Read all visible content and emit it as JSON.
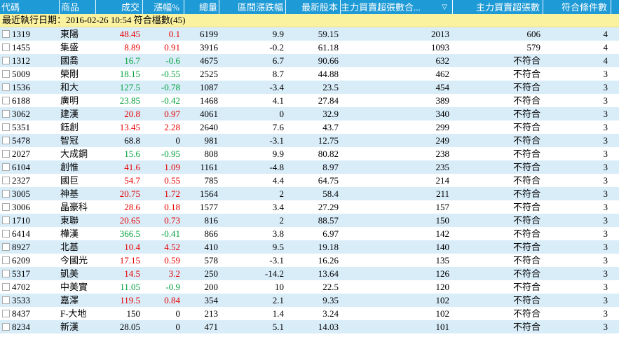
{
  "header": {
    "columns": [
      {
        "id": "code",
        "label": "代碼"
      },
      {
        "id": "name",
        "label": "商品"
      },
      {
        "id": "price",
        "label": "成交"
      },
      {
        "id": "change",
        "label": "漲幅%"
      },
      {
        "id": "volume",
        "label": "總量"
      },
      {
        "id": "range",
        "label": "區間漲跌幅"
      },
      {
        "id": "capital",
        "label": "最新股本"
      },
      {
        "id": "maintotal",
        "label": "主力買賣超張數合...",
        "sort_indicator": "▽"
      },
      {
        "id": "mainnet",
        "label": "主力買賣超張數"
      },
      {
        "id": "match",
        "label": "符合條件數"
      }
    ]
  },
  "info_bar": {
    "text": "最近執行日期：2016-02-26 10:54 符合檔數(45)"
  },
  "colors": {
    "up": "#e60000",
    "down": "#00a03c",
    "flat": "#000000",
    "header_bg": "#1e9ad6",
    "header_text": "#ffffff",
    "info_bg": "#fbf2a0",
    "row_alt_bg": "#d9edf9",
    "row_bg": "#ffffff"
  },
  "rows": [
    {
      "code": "1319",
      "name": "東陽",
      "price": "48.45",
      "change": "0.1",
      "volume": "6199",
      "range": "9.9",
      "capital": "59.15",
      "maintotal": "2013",
      "mainnet": "606",
      "match": "4",
      "trend": "up"
    },
    {
      "code": "1455",
      "name": "集盛",
      "price": "8.89",
      "change": "0.91",
      "volume": "3916",
      "range": "-0.2",
      "capital": "61.18",
      "maintotal": "1093",
      "mainnet": "579",
      "match": "4",
      "trend": "up"
    },
    {
      "code": "1312",
      "name": "國喬",
      "price": "16.7",
      "change": "-0.6",
      "volume": "4675",
      "range": "6.7",
      "capital": "90.66",
      "maintotal": "632",
      "mainnet": "不符合",
      "match": "4",
      "trend": "down"
    },
    {
      "code": "5009",
      "name": "榮剛",
      "price": "18.15",
      "change": "-0.55",
      "volume": "2525",
      "range": "8.7",
      "capital": "44.88",
      "maintotal": "462",
      "mainnet": "不符合",
      "match": "3",
      "trend": "down"
    },
    {
      "code": "1536",
      "name": "和大",
      "price": "127.5",
      "change": "-0.78",
      "volume": "1087",
      "range": "-3.4",
      "capital": "23.5",
      "maintotal": "454",
      "mainnet": "不符合",
      "match": "3",
      "trend": "down"
    },
    {
      "code": "6188",
      "name": "廣明",
      "price": "23.85",
      "change": "-0.42",
      "volume": "1468",
      "range": "4.1",
      "capital": "27.84",
      "maintotal": "389",
      "mainnet": "不符合",
      "match": "3",
      "trend": "down"
    },
    {
      "code": "3062",
      "name": "建漢",
      "price": "20.8",
      "change": "0.97",
      "volume": "4061",
      "range": "0",
      "capital": "32.9",
      "maintotal": "340",
      "mainnet": "不符合",
      "match": "3",
      "trend": "up"
    },
    {
      "code": "5351",
      "name": "鈺創",
      "price": "13.45",
      "change": "2.28",
      "volume": "2640",
      "range": "7.6",
      "capital": "43.7",
      "maintotal": "299",
      "mainnet": "不符合",
      "match": "3",
      "trend": "up"
    },
    {
      "code": "5478",
      "name": "智冠",
      "price": "68.8",
      "change": "0",
      "volume": "981",
      "range": "-3.1",
      "capital": "12.75",
      "maintotal": "249",
      "mainnet": "不符合",
      "match": "3",
      "trend": "flat"
    },
    {
      "code": "2027",
      "name": "大成鋼",
      "price": "15.6",
      "change": "-0.95",
      "volume": "808",
      "range": "9.9",
      "capital": "80.82",
      "maintotal": "238",
      "mainnet": "不符合",
      "match": "3",
      "trend": "down"
    },
    {
      "code": "6104",
      "name": "創惟",
      "price": "41.6",
      "change": "1.09",
      "volume": "1161",
      "range": "-4.8",
      "capital": "8.97",
      "maintotal": "235",
      "mainnet": "不符合",
      "match": "3",
      "trend": "up"
    },
    {
      "code": "2327",
      "name": "國巨",
      "price": "54.7",
      "change": "0.55",
      "volume": "785",
      "range": "4.4",
      "capital": "64.75",
      "maintotal": "214",
      "mainnet": "不符合",
      "match": "3",
      "trend": "up"
    },
    {
      "code": "3005",
      "name": "神基",
      "price": "20.75",
      "change": "1.72",
      "volume": "1564",
      "range": "2",
      "capital": "58.4",
      "maintotal": "211",
      "mainnet": "不符合",
      "match": "3",
      "trend": "up"
    },
    {
      "code": "3006",
      "name": "晶豪科",
      "price": "28.6",
      "change": "0.18",
      "volume": "1577",
      "range": "3.4",
      "capital": "27.29",
      "maintotal": "157",
      "mainnet": "不符合",
      "match": "3",
      "trend": "up"
    },
    {
      "code": "1710",
      "name": "東聯",
      "price": "20.65",
      "change": "0.73",
      "volume": "816",
      "range": "2",
      "capital": "88.57",
      "maintotal": "150",
      "mainnet": "不符合",
      "match": "3",
      "trend": "up"
    },
    {
      "code": "6414",
      "name": "樺漢",
      "price": "366.5",
      "change": "-0.41",
      "volume": "866",
      "range": "3.8",
      "capital": "6.97",
      "maintotal": "142",
      "mainnet": "不符合",
      "match": "3",
      "trend": "down"
    },
    {
      "code": "8927",
      "name": "北基",
      "price": "10.4",
      "change": "4.52",
      "volume": "410",
      "range": "9.5",
      "capital": "19.18",
      "maintotal": "140",
      "mainnet": "不符合",
      "match": "3",
      "trend": "up"
    },
    {
      "code": "6209",
      "name": "今國光",
      "price": "17.15",
      "change": "0.59",
      "volume": "578",
      "range": "-3.1",
      "capital": "16.26",
      "maintotal": "135",
      "mainnet": "不符合",
      "match": "3",
      "trend": "up"
    },
    {
      "code": "5317",
      "name": "凱美",
      "price": "14.5",
      "change": "3.2",
      "volume": "250",
      "range": "-14.2",
      "capital": "13.64",
      "maintotal": "126",
      "mainnet": "不符合",
      "match": "3",
      "trend": "up"
    },
    {
      "code": "4702",
      "name": "中美實",
      "price": "11.05",
      "change": "-0.9",
      "volume": "200",
      "range": "10",
      "capital": "22.5",
      "maintotal": "120",
      "mainnet": "不符合",
      "match": "3",
      "trend": "down"
    },
    {
      "code": "3533",
      "name": "嘉澤",
      "price": "119.5",
      "change": "0.84",
      "volume": "354",
      "range": "2.1",
      "capital": "9.35",
      "maintotal": "102",
      "mainnet": "不符合",
      "match": "3",
      "trend": "up"
    },
    {
      "code": "8437",
      "name": "F-大地",
      "price": "150",
      "change": "0",
      "volume": "213",
      "range": "1.4",
      "capital": "3.24",
      "maintotal": "102",
      "mainnet": "不符合",
      "match": "3",
      "trend": "flat"
    },
    {
      "code": "8234",
      "name": "新漢",
      "price": "28.05",
      "change": "0",
      "volume": "471",
      "range": "5.1",
      "capital": "14.03",
      "maintotal": "101",
      "mainnet": "不符合",
      "match": "3",
      "trend": "flat"
    }
  ]
}
